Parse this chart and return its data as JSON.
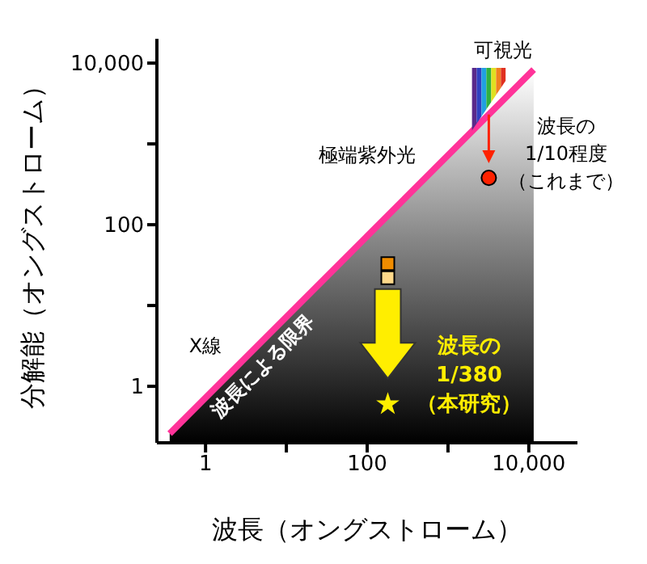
{
  "chart_data": {
    "type": "scatter",
    "xlabel": "波長（オングストローム）",
    "ylabel": "分解能（オングストローム）",
    "log": "xy",
    "xlim": [
      0.25,
      40000
    ],
    "ylim": [
      0.2,
      20000
    ],
    "xticks": [
      1,
      {
        "value": 10,
        "label": null
      },
      100,
      {
        "value": 1000,
        "label": null
      },
      {
        "value": 10000,
        "label": "10,000"
      }
    ],
    "yticks": [
      1,
      {
        "value": 10,
        "label": null
      },
      100,
      {
        "value": 1000,
        "label": null
      },
      {
        "value": 10000,
        "label": "10,000"
      }
    ],
    "series": [
      {
        "type": "area",
        "color": "#ff3399",
        "x": [
          0.36,
          11500
        ],
        "values": [
          0.26,
          8300
        ]
      },
      {
        "marker": "circle",
        "color": "#ff2200",
        "x": [
          3200
        ],
        "values": [
          380
        ]
      },
      {
        "marker": "square",
        "colors": [
          "#f08c00",
          "#ffd98a"
        ],
        "x": [
          180,
          180
        ],
        "values": [
          33,
          22
        ]
      },
      {
        "marker": "star",
        "color": "#ffee00",
        "x": [
          180
        ],
        "values": [
          0.6
        ]
      }
    ],
    "annotations": [
      "可視光",
      "極端紫外光",
      "波長の",
      "1/10程度",
      "（これまで）",
      "X線",
      "波長による限界",
      "波長の",
      "1/380",
      "（本研究）"
    ]
  }
}
